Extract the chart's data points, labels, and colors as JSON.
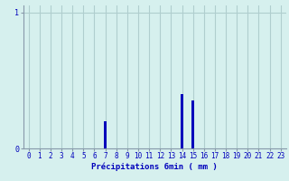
{
  "hours": [
    0,
    1,
    2,
    3,
    4,
    5,
    6,
    7,
    8,
    9,
    10,
    11,
    12,
    13,
    14,
    15,
    16,
    17,
    18,
    19,
    20,
    21,
    22,
    23
  ],
  "values": [
    0,
    0,
    0,
    0,
    0,
    0,
    0,
    0.2,
    0,
    0,
    0,
    0,
    0,
    0,
    0.4,
    0.35,
    0,
    0,
    0,
    0,
    0,
    0,
    0,
    0
  ],
  "bar_color": "#0000bb",
  "bg_color": "#d6f0ee",
  "grid_color": "#b0cece",
  "axis_color": "#8899aa",
  "text_color": "#0000bb",
  "xlabel": "Précipitations 6min ( mm )",
  "ylim": [
    0,
    1.05
  ],
  "xlim": [
    -0.5,
    23.5
  ],
  "yticks": [
    0,
    1
  ],
  "ytick_labels": [
    "0",
    "1"
  ],
  "xtick_labels": [
    "0",
    "1",
    "2",
    "3",
    "4",
    "5",
    "6",
    "7",
    "8",
    "9",
    "10",
    "11",
    "12",
    "13",
    "14",
    "15",
    "16",
    "17",
    "18",
    "19",
    "20",
    "21",
    "22",
    "23"
  ],
  "bar_width": 0.3
}
